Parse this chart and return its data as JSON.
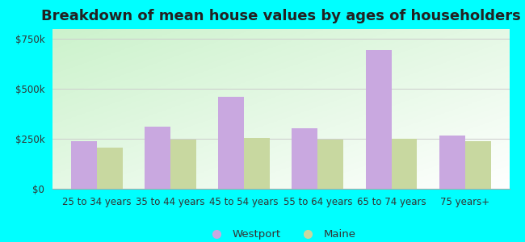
{
  "title": "Breakdown of mean house values by ages of householders",
  "categories": [
    "25 to 34 years",
    "35 to 44 years",
    "45 to 54 years",
    "55 to 64 years",
    "65 to 74 years",
    "75 years+"
  ],
  "westport_values": [
    237000,
    310000,
    462000,
    305000,
    693000,
    268000
  ],
  "maine_values": [
    205000,
    248000,
    255000,
    248000,
    250000,
    240000
  ],
  "westport_color": "#c9a8e0",
  "maine_color": "#c8d8a0",
  "background_color": "#00ffff",
  "ylabel_ticks": [
    "$0",
    "$250k",
    "$500k",
    "$750k"
  ],
  "ytick_values": [
    0,
    250000,
    500000,
    750000
  ],
  "ylim": [
    0,
    800000
  ],
  "legend_labels": [
    "Westport",
    "Maine"
  ],
  "title_fontsize": 13,
  "tick_fontsize": 8.5,
  "legend_fontsize": 9.5,
  "bar_width": 0.35,
  "grad_colors": [
    "#c8e8c0",
    "#e8f5e8",
    "#f0f8f0"
  ],
  "grid_color": "#cccccc",
  "spine_color": "#aaaaaa"
}
